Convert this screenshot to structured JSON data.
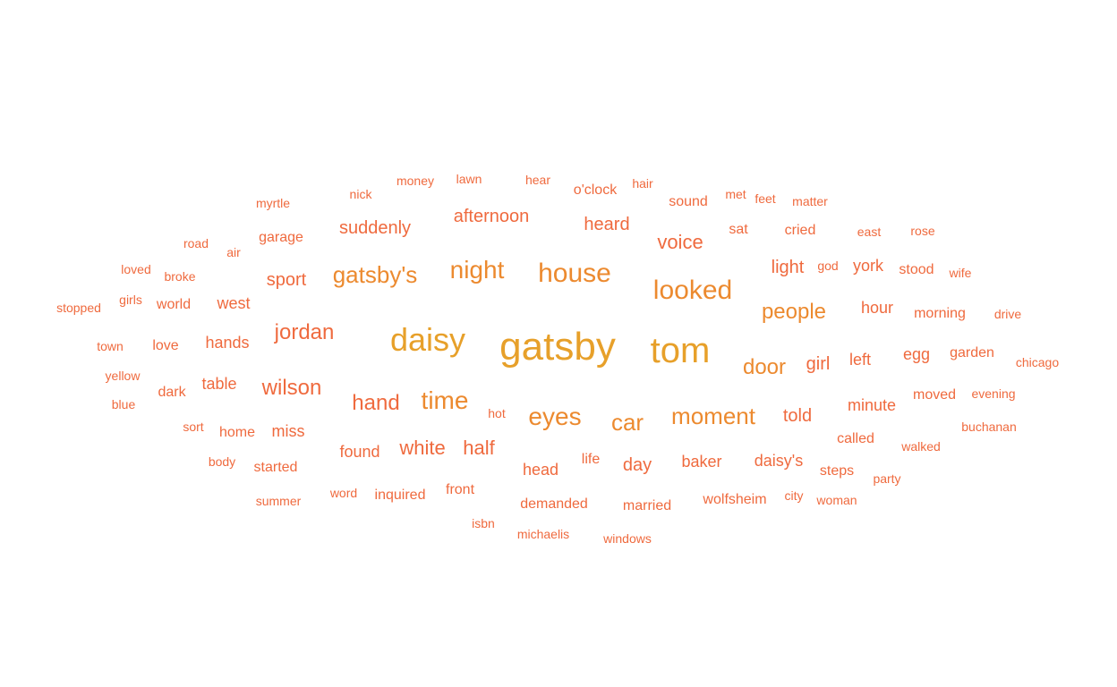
{
  "palette": {
    "small": "#ef6a3e",
    "medium": "#ec8a2f",
    "large": "#e7a02a"
  },
  "words": [
    {
      "text": "gatsby",
      "weight": 12
    },
    {
      "text": "tom",
      "weight": 11
    },
    {
      "text": "daisy",
      "weight": 10
    },
    {
      "text": "house",
      "weight": 9
    },
    {
      "text": "looked",
      "weight": 9
    },
    {
      "text": "night",
      "weight": 8
    },
    {
      "text": "gatsby's",
      "weight": 8
    },
    {
      "text": "eyes",
      "weight": 8
    },
    {
      "text": "time",
      "weight": 8
    },
    {
      "text": "car",
      "weight": 7
    },
    {
      "text": "moment",
      "weight": 7
    },
    {
      "text": "people",
      "weight": 7
    },
    {
      "text": "door",
      "weight": 7
    },
    {
      "text": "jordan",
      "weight": 7
    },
    {
      "text": "wilson",
      "weight": 7
    },
    {
      "text": "hand",
      "weight": 7
    },
    {
      "text": "voice",
      "weight": 6
    },
    {
      "text": "white",
      "weight": 6
    },
    {
      "text": "half",
      "weight": 6
    },
    {
      "text": "afternoon",
      "weight": 5
    },
    {
      "text": "suddenly",
      "weight": 5
    },
    {
      "text": "heard",
      "weight": 5
    },
    {
      "text": "sport",
      "weight": 5
    },
    {
      "text": "girl",
      "weight": 5
    },
    {
      "text": "light",
      "weight": 5
    },
    {
      "text": "told",
      "weight": 5
    },
    {
      "text": "day",
      "weight": 5
    },
    {
      "text": "baker",
      "weight": 4
    },
    {
      "text": "daisy's",
      "weight": 4
    },
    {
      "text": "left",
      "weight": 4
    },
    {
      "text": "hour",
      "weight": 4
    },
    {
      "text": "york",
      "weight": 4
    },
    {
      "text": "head",
      "weight": 4
    },
    {
      "text": "found",
      "weight": 4
    },
    {
      "text": "west",
      "weight": 4
    },
    {
      "text": "hands",
      "weight": 4
    },
    {
      "text": "miss",
      "weight": 4
    },
    {
      "text": "table",
      "weight": 4
    },
    {
      "text": "minute",
      "weight": 4
    },
    {
      "text": "egg",
      "weight": 4
    },
    {
      "text": "morning",
      "weight": 3
    },
    {
      "text": "garage",
      "weight": 3
    },
    {
      "text": "sound",
      "weight": 3
    },
    {
      "text": "sat",
      "weight": 3
    },
    {
      "text": "cried",
      "weight": 3
    },
    {
      "text": "front",
      "weight": 3
    },
    {
      "text": "life",
      "weight": 3
    },
    {
      "text": "inquired",
      "weight": 3
    },
    {
      "text": "called",
      "weight": 3
    },
    {
      "text": "stood",
      "weight": 3
    },
    {
      "text": "garden",
      "weight": 3
    },
    {
      "text": "moved",
      "weight": 3
    },
    {
      "text": "demanded",
      "weight": 3
    },
    {
      "text": "married",
      "weight": 3
    },
    {
      "text": "wolfsheim",
      "weight": 3
    },
    {
      "text": "home",
      "weight": 3
    },
    {
      "text": "world",
      "weight": 3
    },
    {
      "text": "love",
      "weight": 3
    },
    {
      "text": "dark",
      "weight": 3
    },
    {
      "text": "started",
      "weight": 3
    },
    {
      "text": "steps",
      "weight": 3
    },
    {
      "text": "o'clock",
      "weight": 3
    },
    {
      "text": "money",
      "weight": 2
    },
    {
      "text": "lawn",
      "weight": 2
    },
    {
      "text": "hear",
      "weight": 2
    },
    {
      "text": "hair",
      "weight": 2
    },
    {
      "text": "myrtle",
      "weight": 2
    },
    {
      "text": "nick",
      "weight": 2
    },
    {
      "text": "matter",
      "weight": 2
    },
    {
      "text": "feet",
      "weight": 2
    },
    {
      "text": "met",
      "weight": 2
    },
    {
      "text": "rose",
      "weight": 2
    },
    {
      "text": "east",
      "weight": 2
    },
    {
      "text": "road",
      "weight": 2
    },
    {
      "text": "air",
      "weight": 2
    },
    {
      "text": "god",
      "weight": 2
    },
    {
      "text": "loved",
      "weight": 2
    },
    {
      "text": "broke",
      "weight": 2
    },
    {
      "text": "wife",
      "weight": 2
    },
    {
      "text": "girls",
      "weight": 2
    },
    {
      "text": "stopped",
      "weight": 2
    },
    {
      "text": "drive",
      "weight": 2
    },
    {
      "text": "town",
      "weight": 2
    },
    {
      "text": "chicago",
      "weight": 2
    },
    {
      "text": "yellow",
      "weight": 2
    },
    {
      "text": "evening",
      "weight": 2
    },
    {
      "text": "blue",
      "weight": 2
    },
    {
      "text": "hot",
      "weight": 2
    },
    {
      "text": "sort",
      "weight": 2
    },
    {
      "text": "buchanan",
      "weight": 2
    },
    {
      "text": "walked",
      "weight": 2
    },
    {
      "text": "body",
      "weight": 2
    },
    {
      "text": "party",
      "weight": 2
    },
    {
      "text": "word",
      "weight": 2
    },
    {
      "text": "city",
      "weight": 2
    },
    {
      "text": "woman",
      "weight": 2
    },
    {
      "text": "summer",
      "weight": 2
    },
    {
      "text": "isbn",
      "weight": 2
    },
    {
      "text": "michaelis",
      "weight": 2
    },
    {
      "text": "windows",
      "weight": 2
    }
  ]
}
